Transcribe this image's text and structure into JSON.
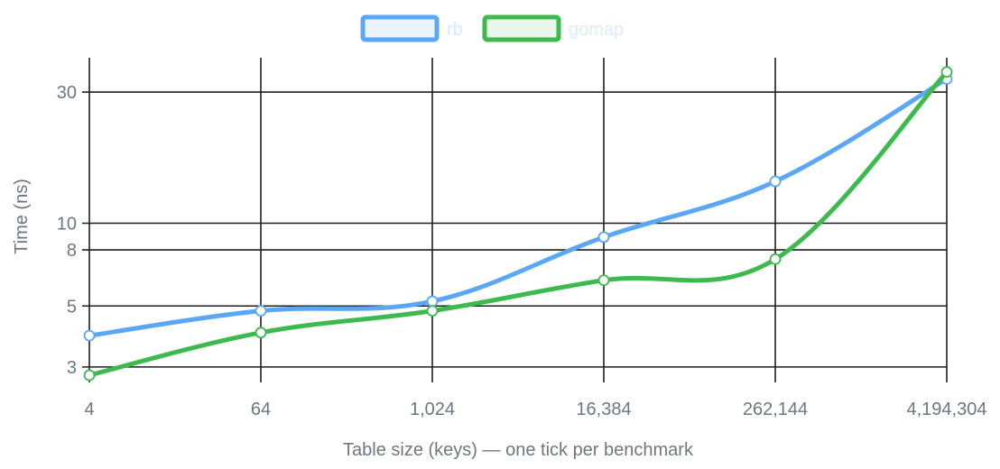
{
  "chart_data": {
    "type": "line",
    "categories": [
      "4",
      "64",
      "1,024",
      "16,384",
      "262,144",
      "4,194,304"
    ],
    "xlabel": "Table size (keys) — one tick per benchmark",
    "ylabel": "Time (ns)",
    "yscale": "log",
    "ylim": [
      2.8,
      40
    ],
    "yticks": [
      3,
      5,
      8,
      10,
      30
    ],
    "ytick_labels": [
      "3",
      "5",
      "8",
      "10",
      "30"
    ],
    "grid": true,
    "legend_position": "top-center",
    "series": [
      {
        "name": "rb",
        "color": "#5aa7f8",
        "fill": "#eaf4fe",
        "values": [
          3.9,
          4.8,
          5.2,
          8.9,
          14.2,
          33.5
        ]
      },
      {
        "name": "gomap",
        "color": "#3dba4e",
        "fill": "#e8f7ea",
        "values": [
          2.8,
          4.0,
          4.8,
          6.2,
          7.4,
          35.5
        ]
      }
    ]
  }
}
